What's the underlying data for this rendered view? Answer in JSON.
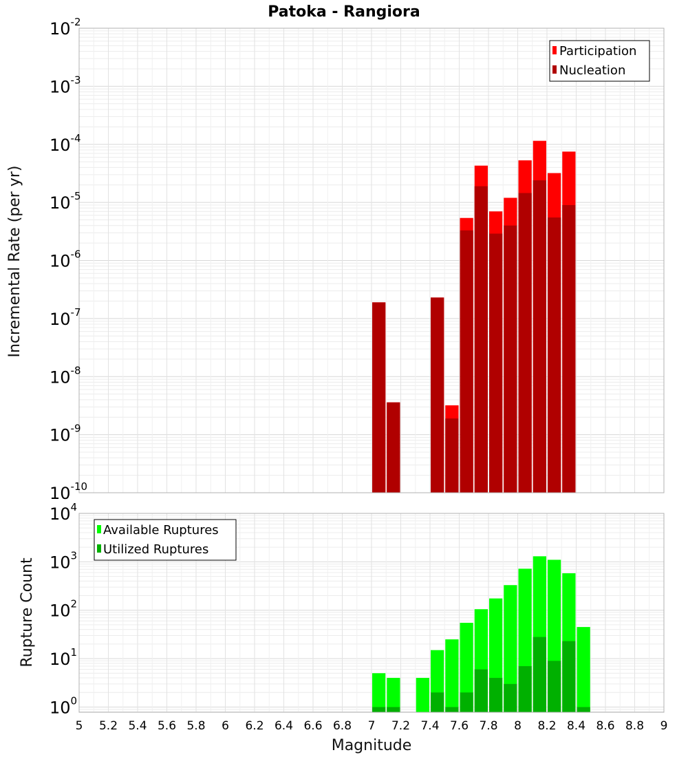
{
  "chart_data": [
    {
      "type": "bar",
      "title": "Patoka - Rangiora",
      "ylabel": "Incremental Rate (per yr)",
      "xlabel": "",
      "yscale": "log",
      "ylim": [
        1e-10,
        0.01
      ],
      "xlim": [
        5,
        9
      ],
      "bar_width": 0.1,
      "legend": {
        "placement": "top-right"
      },
      "grid": true,
      "x": [
        7.05,
        7.15,
        7.25,
        7.35,
        7.45,
        7.55,
        7.65,
        7.75,
        7.85,
        7.95,
        8.05,
        8.15,
        8.25,
        8.35
      ],
      "series": [
        {
          "name": "Participation",
          "color": "#ff0000",
          "values": [
            1.9e-07,
            3.6e-09,
            null,
            null,
            2.3e-07,
            3.2e-09,
            5.4e-06,
            4.3e-05,
            7e-06,
            1.2e-05,
            5.3e-05,
            0.000115,
            3.2e-05,
            7.5e-05
          ]
        },
        {
          "name": "Nucleation",
          "color": "#b00000",
          "values": [
            1.9e-07,
            3.6e-09,
            null,
            null,
            2.3e-07,
            1.9e-09,
            3.3e-06,
            1.9e-05,
            2.9e-06,
            4e-06,
            1.45e-05,
            2.4e-05,
            5.5e-06,
            9e-06
          ]
        }
      ]
    },
    {
      "type": "bar",
      "title": "",
      "ylabel": "Rupture Count",
      "xlabel": "Magnitude",
      "yscale": "log",
      "ylim": [
        0.78,
        10000
      ],
      "xlim": [
        5,
        9
      ],
      "bar_width": 0.1,
      "legend": {
        "placement": "top-left"
      },
      "grid": true,
      "x": [
        7.05,
        7.15,
        7.25,
        7.35,
        7.45,
        7.55,
        7.65,
        7.75,
        7.85,
        7.95,
        8.05,
        8.15,
        8.25,
        8.35,
        8.45
      ],
      "series": [
        {
          "name": "Available Ruptures",
          "color": "#00ff00",
          "values": [
            5,
            4,
            null,
            4,
            15,
            25,
            55,
            105,
            175,
            330,
            720,
            1300,
            1100,
            580,
            45
          ]
        },
        {
          "name": "Utilized Ruptures",
          "color": "#00b000",
          "values": [
            1,
            1,
            null,
            null,
            2,
            1,
            2,
            6,
            4,
            3,
            7,
            28,
            9,
            23,
            1
          ]
        }
      ],
      "xticks": [
        "5",
        "5.2",
        "5.4",
        "5.6",
        "5.8",
        "6",
        "6.2",
        "6.4",
        "6.6",
        "6.8",
        "7",
        "7.2",
        "7.4",
        "7.6",
        "7.8",
        "8",
        "8.2",
        "8.4",
        "8.6",
        "8.8",
        "9"
      ]
    }
  ]
}
